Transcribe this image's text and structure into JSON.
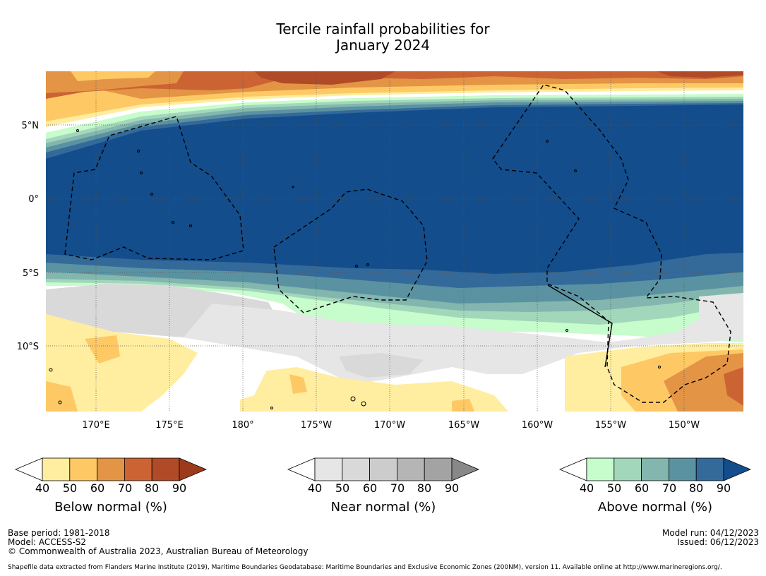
{
  "title": {
    "line1": "Tercile rainfall probabilities for",
    "line2": "January 2024"
  },
  "map": {
    "lat_labels": [
      "5°N",
      "0°",
      "5°S",
      "10°S"
    ],
    "lon_labels": [
      "170°E",
      "175°E",
      "180°",
      "175°W",
      "170°W",
      "165°W",
      "160°W",
      "155°W",
      "150°W"
    ]
  },
  "legends": [
    {
      "caption": "Below normal (%)",
      "ticks": [
        "40",
        "50",
        "60",
        "70",
        "80",
        "90"
      ],
      "colors": [
        "#ffffff",
        "#ffeda0",
        "#fec965",
        "#e39444",
        "#cb6333",
        "#b04a27",
        "#9c3a1c"
      ]
    },
    {
      "caption": "Near normal (%)",
      "ticks": [
        "40",
        "50",
        "60",
        "70",
        "80",
        "90"
      ],
      "colors": [
        "#ffffff",
        "#e6e6e6",
        "#d9d9d9",
        "#cccccc",
        "#b5b5b5",
        "#a3a3a3",
        "#888888"
      ]
    },
    {
      "caption": "Above normal (%)",
      "ticks": [
        "40",
        "50",
        "60",
        "70",
        "80",
        "90"
      ],
      "colors": [
        "#ffffff",
        "#c7fccc",
        "#a2d7bb",
        "#82b6ae",
        "#5b92a2",
        "#336a9a",
        "#134d8c"
      ]
    }
  ],
  "footer": {
    "base_period": "Base period: 1981-2018",
    "model": "Model: ACCESS-S2",
    "copyright": "© Commonwealth of Australia 2023, Australian Bureau of Meteorology",
    "model_run": "Model run: 04/12/2023",
    "issued": "Issued: 06/12/2023",
    "shapefile": "Shapefile data extracted from Flanders Marine Institute (2019), Maritime Boundaries Geodatabase: Maritime Boundaries and Exclusive Economic Zones (200NM), version 11. Available online at http://www.marineregions.org/."
  }
}
